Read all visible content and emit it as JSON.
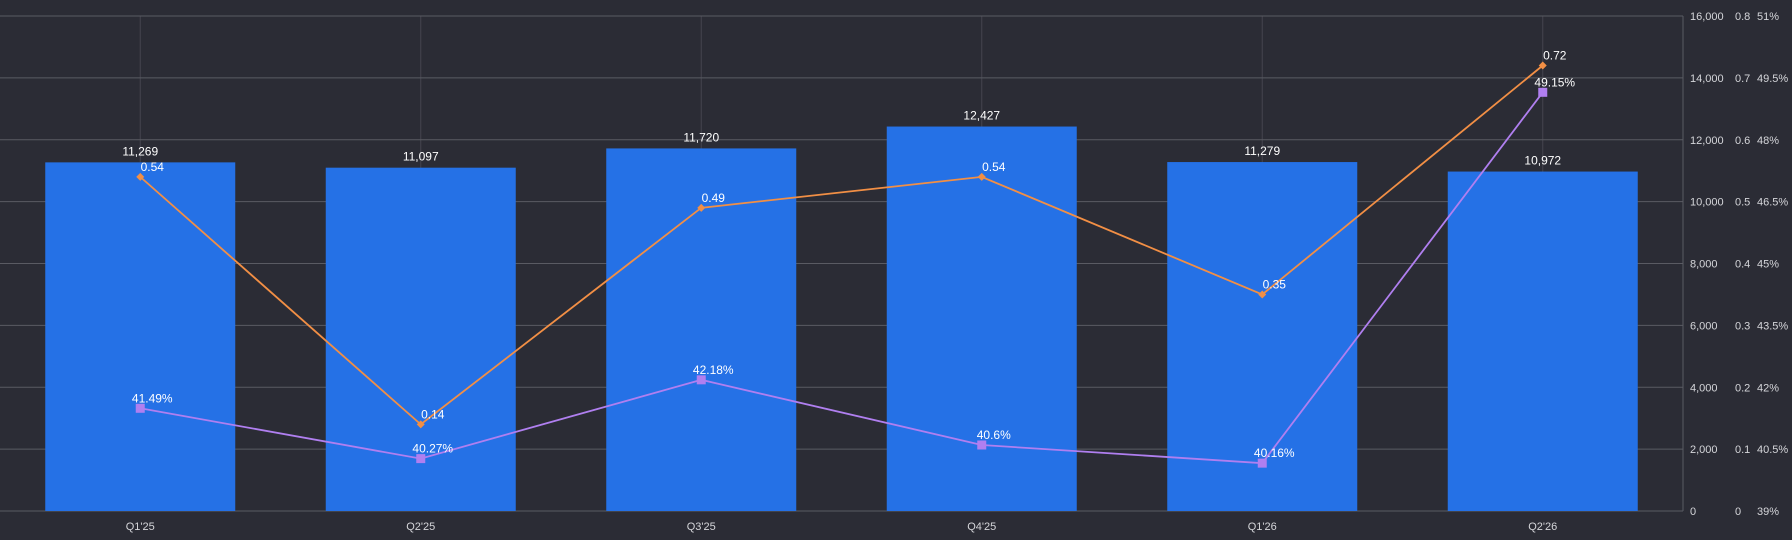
{
  "chart_data": {
    "type": "bar",
    "categories": [
      "Q1'25",
      "Q2'25",
      "Q3'25",
      "Q4'25",
      "Q1'26",
      "Q2'26"
    ],
    "series": [
      {
        "kind": "bar",
        "axis": "y1",
        "values": [
          11269,
          11097,
          11720,
          12427,
          11279,
          10972
        ],
        "labels": [
          "11,269",
          "11,097",
          "11,720",
          "12,427",
          "11,279",
          "10,972"
        ],
        "color": "#2571e6"
      },
      {
        "kind": "line",
        "axis": "y2",
        "values": [
          0.54,
          0.14,
          0.49,
          0.54,
          0.35,
          0.72
        ],
        "labels": [
          "0.54",
          "0.14",
          "0.49",
          "0.54",
          "0.35",
          "0.72"
        ],
        "color": "#f28f45",
        "marker": "diamond"
      },
      {
        "kind": "line",
        "axis": "y3",
        "values": [
          41.49,
          40.27,
          42.18,
          40.6,
          40.16,
          49.15
        ],
        "labels": [
          "41.49%",
          "40.27%",
          "42.18%",
          "40.6%",
          "40.16%",
          "49.15%"
        ],
        "color": "#b07ff0",
        "marker": "square"
      }
    ],
    "axes": {
      "y1": {
        "min": 0,
        "max": 16000,
        "ticks": [
          0,
          2000,
          4000,
          6000,
          8000,
          10000,
          12000,
          14000,
          16000
        ],
        "tick_labels": [
          "0",
          "2,000",
          "4,000",
          "6,000",
          "8,000",
          "10,000",
          "12,000",
          "14,000",
          "16,000"
        ]
      },
      "y2": {
        "min": 0,
        "max": 0.8,
        "ticks": [
          0,
          0.1,
          0.2,
          0.3,
          0.4,
          0.5,
          0.6,
          0.7,
          0.8
        ],
        "tick_labels": [
          "0",
          "0.1",
          "0.2",
          "0.3",
          "0.4",
          "0.5",
          "0.6",
          "0.7",
          "0.8"
        ]
      },
      "y3": {
        "min": 39,
        "max": 51,
        "ticks": [
          39,
          40.5,
          42,
          43.5,
          45,
          46.5,
          48,
          49.5,
          51
        ],
        "tick_labels": [
          "39%",
          "40.5%",
          "42%",
          "43.5%",
          "45%",
          "46.5%",
          "48%",
          "49.5%",
          "51%"
        ]
      }
    },
    "grid": true,
    "colors": {
      "background": "#2b2c35",
      "grid": "#5a5b63",
      "text": "#d5d6da",
      "label": "#ffffff"
    }
  }
}
